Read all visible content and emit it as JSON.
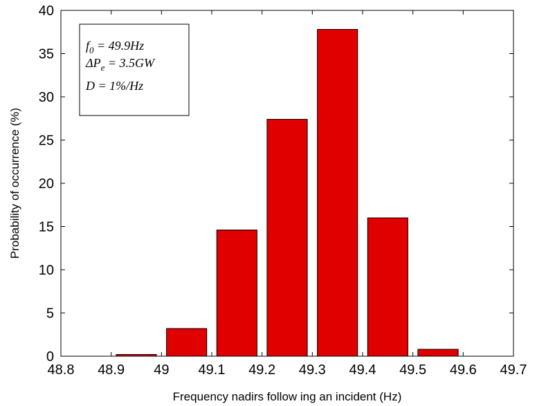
{
  "chart_data": {
    "type": "bar",
    "xlabel": "Frequency nadirs follow ing an incident (Hz)",
    "ylabel": "Probability of occurrence (%)",
    "xlim": [
      48.8,
      49.7
    ],
    "ylim": [
      0,
      40
    ],
    "xticks": [
      48.8,
      48.9,
      49.0,
      49.1,
      49.2,
      49.3,
      49.4,
      49.5,
      49.6,
      49.7
    ],
    "xtick_labels": [
      "48.8",
      "48.9",
      "49",
      "49.1",
      "49.2",
      "49.3",
      "49.4",
      "49.5",
      "49.6",
      "49.7"
    ],
    "yticks": [
      0,
      5,
      10,
      15,
      20,
      25,
      30,
      35,
      40
    ],
    "ytick_labels": [
      "0",
      "5",
      "10",
      "15",
      "20",
      "25",
      "30",
      "35",
      "40"
    ],
    "bar_width": 0.08,
    "x": [
      48.85,
      48.95,
      49.05,
      49.15,
      49.25,
      49.35,
      49.45,
      49.55,
      49.65
    ],
    "values": [
      0,
      0.2,
      3.2,
      14.6,
      27.4,
      37.8,
      16.0,
      0.8,
      0
    ],
    "bar_color": "#e00000",
    "grid": false,
    "annotation": {
      "line1": {
        "main": "f",
        "sub": "0",
        "rest": " = 49.9Hz"
      },
      "line2": {
        "main": "ΔP",
        "sub": "e",
        "rest": " = 3.5GW"
      },
      "line3": {
        "main": "D = 1%/Hz"
      }
    }
  }
}
